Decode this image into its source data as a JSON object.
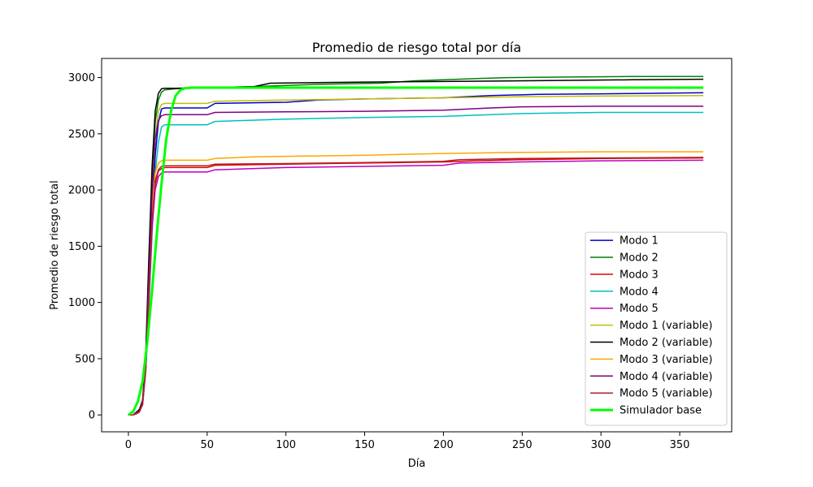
{
  "chart_data": {
    "type": "line",
    "title": "Promedio de riesgo total por día",
    "xlabel": "Día",
    "ylabel": "Promedio de riesgo total",
    "xlim": [
      -17,
      383
    ],
    "ylim": [
      -150,
      3170
    ],
    "xticks": [
      0,
      50,
      100,
      150,
      200,
      250,
      300,
      350
    ],
    "yticks": [
      0,
      500,
      1000,
      1500,
      2000,
      2500,
      3000
    ],
    "grid": false,
    "legend_position": "lower-right",
    "series": [
      {
        "name": "Modo 1",
        "color": "#0000cc",
        "linewidth": 1.5,
        "x": [
          0,
          3,
          5,
          7,
          9,
          11,
          13,
          15,
          17,
          19,
          21,
          23,
          30,
          50,
          55,
          100,
          120,
          150,
          200,
          230,
          260,
          300,
          330,
          365
        ],
        "y": [
          0,
          0,
          15,
          30,
          90,
          400,
          1000,
          1700,
          2300,
          2600,
          2720,
          2730,
          2730,
          2730,
          2770,
          2780,
          2800,
          2810,
          2820,
          2840,
          2850,
          2855,
          2860,
          2865
        ]
      },
      {
        "name": "Modo 2",
        "color": "#008000",
        "linewidth": 1.5,
        "x": [
          0,
          3,
          5,
          7,
          9,
          11,
          13,
          15,
          17,
          19,
          21,
          23,
          30,
          50,
          80,
          120,
          160,
          180,
          200,
          220,
          240,
          280,
          320,
          365
        ],
        "y": [
          0,
          0,
          20,
          40,
          120,
          500,
          1300,
          2100,
          2600,
          2800,
          2870,
          2890,
          2900,
          2910,
          2920,
          2940,
          2950,
          2970,
          2980,
          2990,
          3000,
          3005,
          3010,
          3010
        ]
      },
      {
        "name": "Modo 3",
        "color": "#e00000",
        "linewidth": 1.5,
        "x": [
          0,
          3,
          5,
          7,
          9,
          11,
          13,
          15,
          17,
          19,
          21,
          23,
          30,
          50,
          55,
          100,
          150,
          200,
          220,
          250,
          300,
          365
        ],
        "y": [
          0,
          0,
          10,
          30,
          100,
          420,
          1050,
          1700,
          2050,
          2170,
          2190,
          2200,
          2200,
          2200,
          2220,
          2230,
          2240,
          2250,
          2260,
          2270,
          2280,
          2285
        ]
      },
      {
        "name": "Modo 4",
        "color": "#00bfbf",
        "linewidth": 1.5,
        "x": [
          0,
          3,
          5,
          7,
          9,
          11,
          13,
          15,
          17,
          19,
          21,
          23,
          30,
          50,
          55,
          100,
          150,
          200,
          230,
          250,
          300,
          365
        ],
        "y": [
          0,
          0,
          15,
          30,
          90,
          380,
          950,
          1600,
          2150,
          2420,
          2560,
          2580,
          2580,
          2580,
          2610,
          2630,
          2645,
          2655,
          2670,
          2680,
          2690,
          2690
        ]
      },
      {
        "name": "Modo 5",
        "color": "#bf00bf",
        "linewidth": 1.5,
        "x": [
          0,
          3,
          5,
          7,
          9,
          11,
          13,
          15,
          17,
          19,
          21,
          23,
          30,
          50,
          55,
          100,
          150,
          200,
          210,
          250,
          300,
          365
        ],
        "y": [
          0,
          0,
          10,
          25,
          90,
          400,
          1000,
          1650,
          2000,
          2120,
          2150,
          2160,
          2160,
          2160,
          2180,
          2200,
          2210,
          2220,
          2240,
          2250,
          2260,
          2265
        ]
      },
      {
        "name": "Modo 1 (variable)",
        "color": "#bfbf00",
        "linewidth": 1.5,
        "x": [
          0,
          3,
          5,
          7,
          9,
          11,
          13,
          15,
          17,
          19,
          21,
          23,
          30,
          50,
          55,
          100,
          150,
          200,
          250,
          300,
          365
        ],
        "y": [
          0,
          0,
          20,
          40,
          110,
          450,
          1150,
          1900,
          2450,
          2700,
          2760,
          2770,
          2770,
          2770,
          2790,
          2800,
          2810,
          2820,
          2830,
          2835,
          2840
        ]
      },
      {
        "name": "Modo 2 (variable)",
        "color": "#000000",
        "linewidth": 1.5,
        "x": [
          0,
          3,
          5,
          7,
          9,
          11,
          13,
          15,
          17,
          19,
          21,
          23,
          30,
          50,
          80,
          90,
          120,
          150,
          200,
          240,
          280,
          320,
          365
        ],
        "y": [
          0,
          0,
          25,
          50,
          130,
          550,
          1400,
          2200,
          2700,
          2860,
          2900,
          2905,
          2905,
          2910,
          2920,
          2950,
          2955,
          2960,
          2965,
          2970,
          2975,
          2980,
          2985
        ]
      },
      {
        "name": "Modo 3 (variable)",
        "color": "#ffa500",
        "linewidth": 1.5,
        "x": [
          0,
          3,
          5,
          7,
          9,
          11,
          13,
          15,
          17,
          19,
          21,
          23,
          30,
          50,
          55,
          80,
          150,
          200,
          250,
          300,
          365
        ],
        "y": [
          0,
          0,
          15,
          30,
          100,
          430,
          1100,
          1800,
          2150,
          2240,
          2260,
          2265,
          2265,
          2265,
          2280,
          2295,
          2310,
          2325,
          2335,
          2340,
          2340
        ]
      },
      {
        "name": "Modo 4 (variable)",
        "color": "#800080",
        "linewidth": 1.5,
        "x": [
          0,
          3,
          5,
          7,
          9,
          11,
          13,
          15,
          17,
          19,
          21,
          23,
          30,
          50,
          55,
          100,
          150,
          200,
          230,
          250,
          300,
          365
        ],
        "y": [
          0,
          0,
          20,
          35,
          110,
          470,
          1200,
          1950,
          2450,
          2620,
          2660,
          2670,
          2670,
          2670,
          2690,
          2695,
          2700,
          2710,
          2730,
          2740,
          2745,
          2745
        ]
      },
      {
        "name": "Modo 5 (variable)",
        "color": "#b22222",
        "linewidth": 1.5,
        "x": [
          0,
          3,
          5,
          7,
          9,
          11,
          13,
          15,
          17,
          19,
          21,
          23,
          30,
          50,
          55,
          100,
          150,
          200,
          210,
          250,
          300,
          365
        ],
        "y": [
          0,
          0,
          10,
          30,
          100,
          430,
          1080,
          1720,
          2080,
          2180,
          2210,
          2215,
          2215,
          2215,
          2230,
          2235,
          2245,
          2255,
          2270,
          2280,
          2285,
          2290
        ]
      },
      {
        "name": "Simulador base",
        "color": "#00ff00",
        "linewidth": 3,
        "x": [
          0,
          3,
          6,
          9,
          12,
          15,
          18,
          21,
          24,
          27,
          30,
          33,
          36,
          40,
          50,
          100,
          200,
          300,
          365
        ],
        "y": [
          0,
          30,
          120,
          300,
          650,
          1100,
          1600,
          2050,
          2450,
          2700,
          2840,
          2890,
          2905,
          2910,
          2910,
          2910,
          2910,
          2910,
          2910
        ]
      }
    ]
  }
}
